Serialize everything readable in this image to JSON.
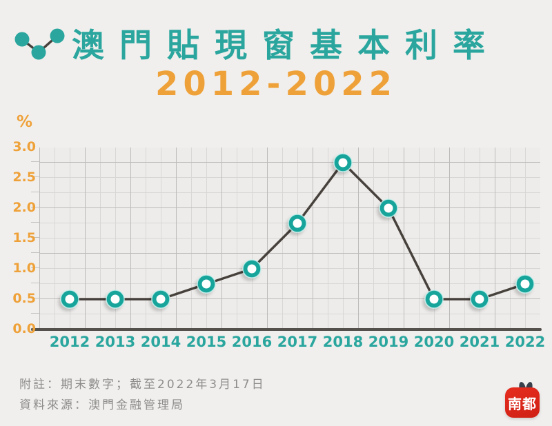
{
  "header": {
    "title": "澳門貼現窗基本利率",
    "subtitle": "2012-2022",
    "title_icon": "line-chart-icon"
  },
  "chart_data": {
    "type": "line",
    "title": "澳門貼現窗基本利率 2012-2022",
    "ylabel": "%",
    "xlabel": "",
    "categories": [
      "2012",
      "2013",
      "2014",
      "2015",
      "2016",
      "2017",
      "2018",
      "2019",
      "2020",
      "2021",
      "2022"
    ],
    "values": [
      0.5,
      0.5,
      0.5,
      0.75,
      1.0,
      1.75,
      2.75,
      2.0,
      0.5,
      0.5,
      0.75
    ],
    "ylim": [
      0.0,
      3.0
    ],
    "yticks": [
      "3.0",
      "2.5",
      "2.0",
      "1.5",
      "1.0",
      "0.5",
      "0.0"
    ],
    "ytick_step": 0.5,
    "grid": "on, minor gridlines every 0.25",
    "legend": "none",
    "marker_style": "teal ring with white center",
    "colors": {
      "line": "#47413c",
      "marker": "#17a49b",
      "marker_center": "#ffffff",
      "xtick_text": "#2aa69e",
      "ytick_text": "#efa139"
    }
  },
  "footer": {
    "note": "附註：期末數字；截至2022年3月17日",
    "source": "資料來源：澳門金融管理局"
  },
  "branding": {
    "logo_text": "南都",
    "logo_color": "#dc2418"
  },
  "theme": {
    "background": "#f0efed",
    "accent_teal": "#2aa69e",
    "accent_orange": "#efa139"
  }
}
